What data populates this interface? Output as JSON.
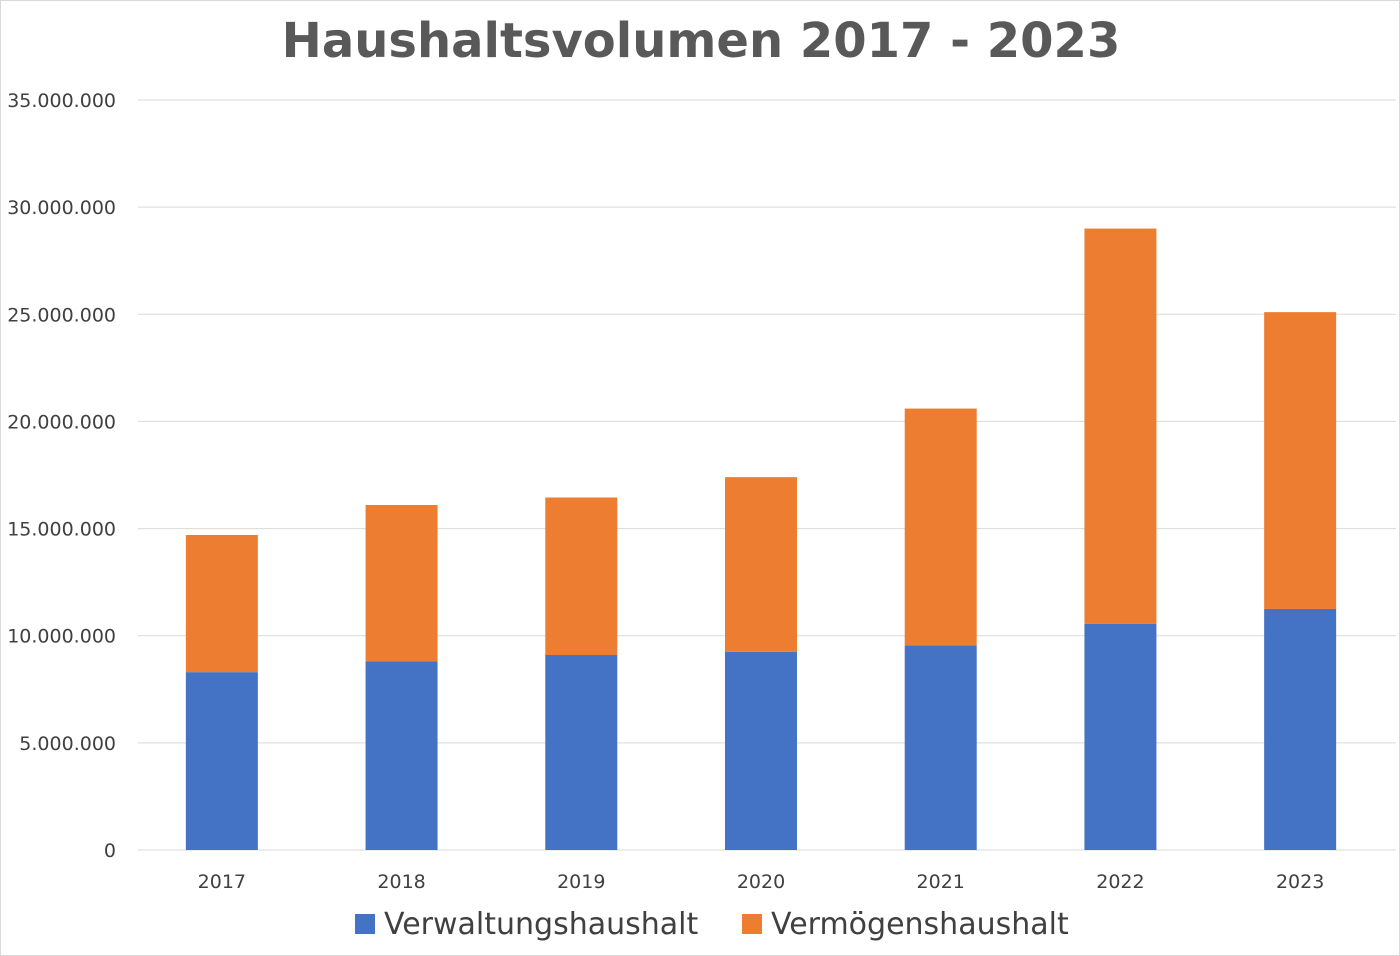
{
  "chart_data": {
    "type": "bar",
    "stacked": true,
    "title": "Haushaltsvolumen 2017 - 2023",
    "xlabel": "",
    "ylabel": "",
    "categories": [
      "2017",
      "2018",
      "2019",
      "2020",
      "2021",
      "2022",
      "2023"
    ],
    "series": [
      {
        "name": "Verwaltungshaushalt",
        "color": "#4472c4",
        "values": [
          8300000,
          8800000,
          9100000,
          9250000,
          9550000,
          10550000,
          11250000
        ]
      },
      {
        "name": "Vermögenshaushalt",
        "color": "#ed7d31",
        "values": [
          6400000,
          7300000,
          7350000,
          8150000,
          11050000,
          18450000,
          13850000
        ]
      }
    ],
    "ylim": [
      0,
      35000000
    ],
    "yticks": [
      0,
      5000000,
      10000000,
      15000000,
      20000000,
      25000000,
      30000000,
      35000000
    ],
    "ytick_labels": [
      "0",
      "5.000.000",
      "10.000.000",
      "15.000.000",
      "20.000.000",
      "25.000.000",
      "30.000.000",
      "35.000.000"
    ],
    "grid": true,
    "legend_position": "bottom"
  }
}
